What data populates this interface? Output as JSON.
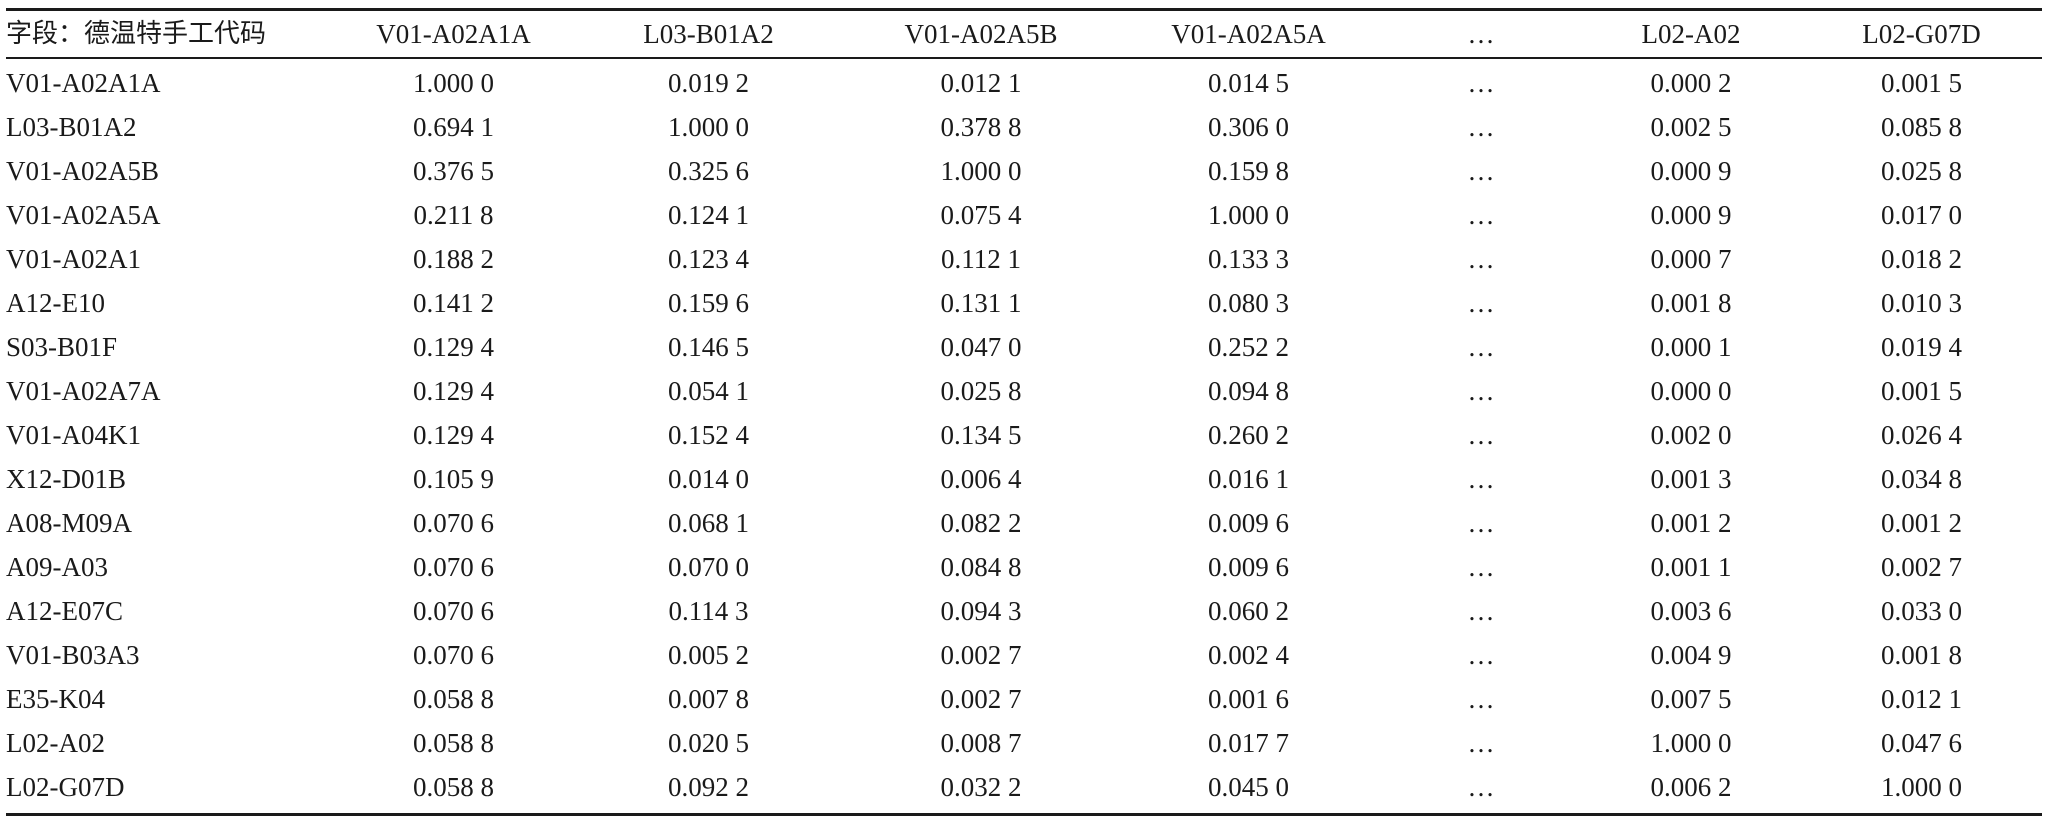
{
  "table": {
    "headers": [
      "字段：德温特手工代码",
      "V01-A02A1A",
      "L03-B01A2",
      "V01-A02A5B",
      "V01-A02A5A",
      "…",
      "L02-A02",
      "L02-G07D"
    ],
    "rows": [
      [
        "V01-A02A1A",
        "1.000 0",
        "0.019 2",
        "0.012 1",
        "0.014 5",
        "…",
        "0.000 2",
        "0.001 5"
      ],
      [
        "L03-B01A2",
        "0.694 1",
        "1.000 0",
        "0.378 8",
        "0.306 0",
        "…",
        "0.002 5",
        "0.085 8"
      ],
      [
        "V01-A02A5B",
        "0.376 5",
        "0.325 6",
        "1.000 0",
        "0.159 8",
        "…",
        "0.000 9",
        "0.025 8"
      ],
      [
        "V01-A02A5A",
        "0.211 8",
        "0.124 1",
        "0.075 4",
        "1.000 0",
        "…",
        "0.000 9",
        "0.017 0"
      ],
      [
        "V01-A02A1",
        "0.188 2",
        "0.123 4",
        "0.112 1",
        "0.133 3",
        "…",
        "0.000 7",
        "0.018 2"
      ],
      [
        "A12-E10",
        "0.141 2",
        "0.159 6",
        "0.131 1",
        "0.080 3",
        "…",
        "0.001 8",
        "0.010 3"
      ],
      [
        "S03-B01F",
        "0.129 4",
        "0.146 5",
        "0.047 0",
        "0.252 2",
        "…",
        "0.000 1",
        "0.019 4"
      ],
      [
        "V01-A02A7A",
        "0.129 4",
        "0.054 1",
        "0.025 8",
        "0.094 8",
        "…",
        "0.000 0",
        "0.001 5"
      ],
      [
        "V01-A04K1",
        "0.129 4",
        "0.152 4",
        "0.134 5",
        "0.260 2",
        "…",
        "0.002 0",
        "0.026 4"
      ],
      [
        "X12-D01B",
        "0.105 9",
        "0.014 0",
        "0.006 4",
        "0.016 1",
        "…",
        "0.001 3",
        "0.034 8"
      ],
      [
        "A08-M09A",
        "0.070 6",
        "0.068 1",
        "0.082 2",
        "0.009 6",
        "…",
        "0.001 2",
        "0.001 2"
      ],
      [
        "A09-A03",
        "0.070 6",
        "0.070 0",
        "0.084 8",
        "0.009 6",
        "…",
        "0.001 1",
        "0.002 7"
      ],
      [
        "A12-E07C",
        "0.070 6",
        "0.114 3",
        "0.094 3",
        "0.060 2",
        "…",
        "0.003 6",
        "0.033 0"
      ],
      [
        "V01-B03A3",
        "0.070 6",
        "0.005 2",
        "0.002 7",
        "0.002 4",
        "…",
        "0.004 9",
        "0.001 8"
      ],
      [
        "E35-K04",
        "0.058 8",
        "0.007 8",
        "0.002 7",
        "0.001 6",
        "…",
        "0.007 5",
        "0.012 1"
      ],
      [
        "L02-A02",
        "0.058 8",
        "0.020 5",
        "0.008 7",
        "0.017 7",
        "…",
        "1.000 0",
        "0.047 6"
      ],
      [
        "L02-G07D",
        "0.058 8",
        "0.092 2",
        "0.032 2",
        "0.045 0",
        "…",
        "0.006 2",
        "1.000 0"
      ]
    ]
  }
}
